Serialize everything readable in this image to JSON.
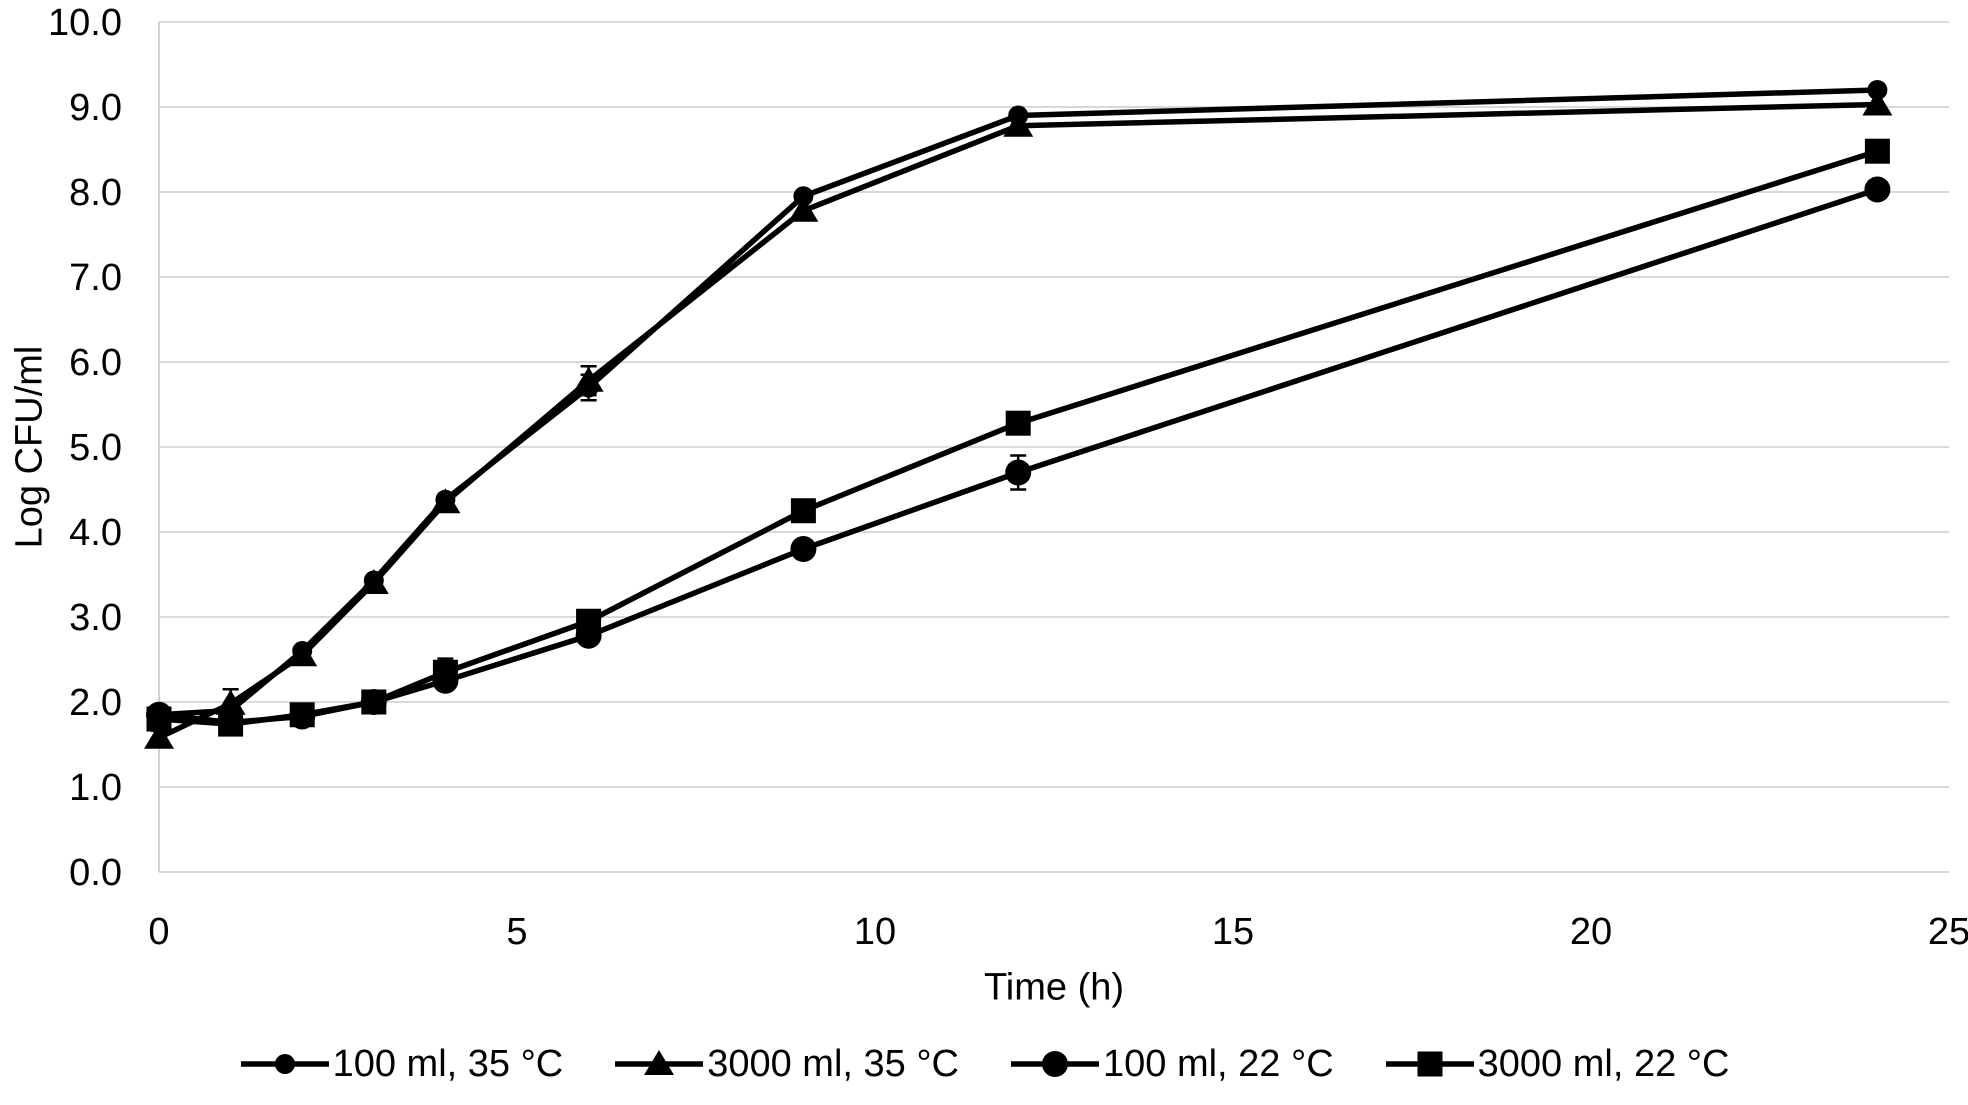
{
  "chart_data": {
    "type": "line",
    "title": "",
    "xlabel": "Time (h)",
    "ylabel": "Log CFU/ml",
    "xlim": [
      0,
      25
    ],
    "ylim": [
      0,
      10
    ],
    "x_ticks": [
      0,
      5,
      10,
      15,
      20,
      25
    ],
    "y_tick_step": 1,
    "y_tick_decimals": 1,
    "grid": "horizontal",
    "legend_position": "bottom-center",
    "colors": {
      "series": "#000000",
      "gridline": "#d9d9d9",
      "axis_line": "#d0d0d0",
      "text": "#000000",
      "background": "#ffffff"
    },
    "x": [
      0,
      1,
      2,
      3,
      4,
      6,
      9,
      12,
      24
    ],
    "series": [
      {
        "name": "100 ml, 35 °C",
        "marker": "circle-small",
        "values": [
          1.85,
          1.9,
          2.6,
          3.43,
          4.38,
          5.7,
          7.95,
          8.9,
          9.2
        ],
        "errors": [
          0,
          0,
          0,
          0,
          0,
          0.15,
          0,
          0,
          0
        ]
      },
      {
        "name": "3000 ml, 35 °C",
        "marker": "triangle",
        "values": [
          1.58,
          1.98,
          2.55,
          3.4,
          4.35,
          5.78,
          7.78,
          8.78,
          9.03
        ],
        "errors": [
          0.08,
          0.17,
          0,
          0,
          0,
          0.17,
          0,
          0,
          0
        ]
      },
      {
        "name": "100 ml, 22 °C",
        "marker": "circle-large",
        "values": [
          1.85,
          1.76,
          1.83,
          2.0,
          2.25,
          2.78,
          3.8,
          4.7,
          8.03
        ],
        "errors": [
          0,
          0,
          0,
          0,
          0,
          0,
          0,
          0.2,
          0
        ]
      },
      {
        "name": "3000 ml, 22 °C",
        "marker": "square",
        "values": [
          1.8,
          1.74,
          1.85,
          2.0,
          2.35,
          2.95,
          4.25,
          5.28,
          8.48
        ],
        "errors": [
          0,
          0,
          0,
          0,
          0.16,
          0,
          0,
          0,
          0
        ]
      }
    ]
  }
}
